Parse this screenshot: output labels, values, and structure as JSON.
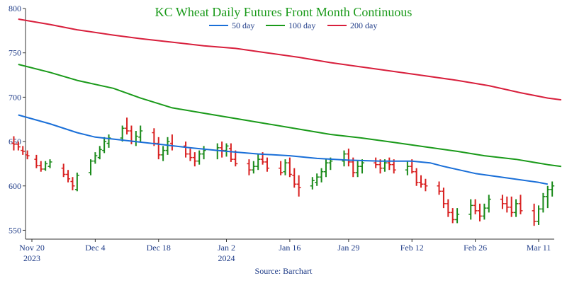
{
  "chart_data": {
    "type": "line",
    "title": "KC Wheat Daily Futures Front Month Continuous",
    "source": "Source: Barchart",
    "colors": {
      "title": "#1a9a1a",
      "ma50": "#1a6fd8",
      "ma100": "#1a9a1a",
      "ma200": "#d81f3c",
      "bar_up": "#1a8a1a",
      "bar_down": "#d81f1f",
      "axis_text": "#1f3c88",
      "axis_line": "#333333"
    },
    "ylim": [
      540,
      800
    ],
    "yticks": [
      550,
      600,
      650,
      700,
      750,
      800
    ],
    "x_day_range": [
      -3,
      110
    ],
    "xticks": [
      {
        "day": 0,
        "label": "Nov 20",
        "sublabel": "2023"
      },
      {
        "day": 14,
        "label": "Dec 4",
        "sublabel": ""
      },
      {
        "day": 28,
        "label": "Dec 18",
        "sublabel": ""
      },
      {
        "day": 43,
        "label": "Jan 2",
        "sublabel": "2024"
      },
      {
        "day": 57,
        "label": "Jan 16",
        "sublabel": ""
      },
      {
        "day": 70,
        "label": "Jan 29",
        "sublabel": ""
      },
      {
        "day": 84,
        "label": "Feb 12",
        "sublabel": ""
      },
      {
        "day": 98,
        "label": "Feb 26",
        "sublabel": ""
      },
      {
        "day": 112,
        "label": "Mar 11",
        "sublabel": ""
      }
    ],
    "legend": [
      {
        "key": "ma50",
        "label": "50 day"
      },
      {
        "key": "ma100",
        "label": "100 day"
      },
      {
        "key": "ma200",
        "label": "200 day"
      }
    ],
    "series": [
      {
        "key": "ma50",
        "name": "50 day",
        "points": [
          [
            -3,
            680
          ],
          [
            4,
            670
          ],
          [
            10,
            660
          ],
          [
            14,
            655
          ],
          [
            21,
            651
          ],
          [
            28,
            647
          ],
          [
            35,
            643
          ],
          [
            43,
            639
          ],
          [
            50,
            636
          ],
          [
            57,
            634
          ],
          [
            63,
            631
          ],
          [
            70,
            629
          ],
          [
            77,
            628
          ],
          [
            84,
            628
          ],
          [
            88,
            626
          ],
          [
            91,
            622
          ],
          [
            98,
            614
          ],
          [
            105,
            609
          ],
          [
            112,
            604
          ],
          [
            114,
            602
          ]
        ]
      },
      {
        "key": "ma100",
        "name": "100 day",
        "points": [
          [
            -3,
            737
          ],
          [
            4,
            728
          ],
          [
            10,
            719
          ],
          [
            18,
            710
          ],
          [
            24,
            699
          ],
          [
            31,
            688
          ],
          [
            38,
            682
          ],
          [
            45,
            676
          ],
          [
            52,
            670
          ],
          [
            59,
            664
          ],
          [
            66,
            658
          ],
          [
            73,
            654
          ],
          [
            80,
            649
          ],
          [
            87,
            644
          ],
          [
            94,
            639
          ],
          [
            100,
            634
          ],
          [
            107,
            630
          ],
          [
            114,
            624
          ],
          [
            117,
            622
          ]
        ]
      },
      {
        "key": "ma200",
        "name": "200 day",
        "points": [
          [
            -3,
            788
          ],
          [
            4,
            782
          ],
          [
            10,
            776
          ],
          [
            18,
            770
          ],
          [
            24,
            766
          ],
          [
            31,
            762
          ],
          [
            38,
            758
          ],
          [
            45,
            755
          ],
          [
            52,
            750
          ],
          [
            59,
            745
          ],
          [
            66,
            739
          ],
          [
            73,
            734
          ],
          [
            80,
            729
          ],
          [
            87,
            724
          ],
          [
            94,
            719
          ],
          [
            101,
            713
          ],
          [
            108,
            705
          ],
          [
            114,
            699
          ],
          [
            117,
            697
          ]
        ]
      }
    ],
    "ohlc": [
      [
        -4,
        648,
        656,
        640,
        647
      ],
      [
        -3,
        647,
        650,
        640,
        644
      ],
      [
        -2,
        640,
        645,
        635,
        639
      ],
      [
        -1,
        635,
        640,
        630,
        634
      ],
      [
        1,
        630,
        635,
        620,
        623
      ],
      [
        2,
        623,
        628,
        616,
        619
      ],
      [
        3,
        619,
        628,
        617,
        625
      ],
      [
        4,
        622,
        630,
        620,
        627
      ],
      [
        7,
        620,
        625,
        610,
        613
      ],
      [
        8,
        613,
        618,
        604,
        608
      ],
      [
        9,
        605,
        610,
        595,
        600
      ],
      [
        10,
        596,
        615,
        594,
        612
      ],
      [
        13,
        615,
        630,
        612,
        628
      ],
      [
        14,
        628,
        638,
        625,
        634
      ],
      [
        15,
        632,
        645,
        630,
        641
      ],
      [
        16,
        640,
        655,
        637,
        650
      ],
      [
        17,
        648,
        658,
        643,
        654
      ],
      [
        20,
        654,
        668,
        650,
        665
      ],
      [
        21,
        665,
        677,
        658,
        662
      ],
      [
        22,
        662,
        668,
        647,
        650
      ],
      [
        23,
        650,
        662,
        645,
        656
      ],
      [
        24,
        655,
        668,
        650,
        662
      ],
      [
        27,
        660,
        665,
        645,
        648
      ],
      [
        28,
        648,
        655,
        630,
        635
      ],
      [
        29,
        635,
        645,
        628,
        640
      ],
      [
        30,
        640,
        655,
        635,
        650
      ],
      [
        31,
        648,
        658,
        640,
        645
      ],
      [
        34,
        645,
        650,
        632,
        636
      ],
      [
        35,
        636,
        642,
        628,
        632
      ],
      [
        36,
        632,
        638,
        622,
        628
      ],
      [
        37,
        628,
        640,
        624,
        636
      ],
      [
        38,
        636,
        645,
        630,
        640
      ],
      [
        41,
        640,
        648,
        630,
        643
      ],
      [
        42,
        643,
        650,
        632,
        640
      ],
      [
        43,
        640,
        648,
        633,
        645
      ],
      [
        44,
        642,
        648,
        627,
        630
      ],
      [
        45,
        630,
        640,
        622,
        625
      ],
      [
        48,
        625,
        630,
        612,
        618
      ],
      [
        49,
        618,
        628,
        614,
        622
      ],
      [
        50,
        622,
        636,
        618,
        630
      ],
      [
        51,
        630,
        638,
        624,
        627
      ],
      [
        52,
        627,
        632,
        616,
        620
      ],
      [
        55,
        620,
        628,
        612,
        615
      ],
      [
        56,
        616,
        630,
        612,
        626
      ],
      [
        57,
        626,
        632,
        610,
        613
      ],
      [
        58,
        612,
        620,
        598,
        602
      ],
      [
        59,
        602,
        612,
        588,
        598
      ],
      [
        62,
        600,
        610,
        596,
        606
      ],
      [
        63,
        604,
        614,
        600,
        610
      ],
      [
        64,
        610,
        620,
        604,
        616
      ],
      [
        65,
        616,
        630,
        610,
        626
      ],
      [
        66,
        626,
        632,
        618,
        628
      ],
      [
        69,
        628,
        640,
        622,
        636
      ],
      [
        70,
        636,
        642,
        622,
        627
      ],
      [
        71,
        627,
        632,
        610,
        615
      ],
      [
        72,
        615,
        628,
        610,
        622
      ],
      [
        73,
        622,
        630,
        614,
        626
      ],
      [
        76,
        626,
        632,
        620,
        624
      ],
      [
        77,
        624,
        630,
        614,
        620
      ],
      [
        78,
        620,
        630,
        616,
        626
      ],
      [
        79,
        626,
        632,
        618,
        624
      ],
      [
        80,
        624,
        630,
        614,
        618
      ],
      [
        83,
        618,
        628,
        612,
        622
      ],
      [
        84,
        622,
        630,
        614,
        616
      ],
      [
        85,
        616,
        620,
        600,
        604
      ],
      [
        86,
        604,
        612,
        598,
        602
      ],
      [
        87,
        602,
        608,
        594,
        600
      ],
      [
        90,
        600,
        605,
        590,
        594
      ],
      [
        91,
        594,
        598,
        575,
        580
      ],
      [
        92,
        580,
        585,
        565,
        570
      ],
      [
        93,
        570,
        575,
        558,
        562
      ],
      [
        94,
        562,
        575,
        558,
        568
      ],
      [
        97,
        568,
        585,
        562,
        578
      ],
      [
        98,
        578,
        585,
        568,
        572
      ],
      [
        99,
        572,
        580,
        560,
        566
      ],
      [
        100,
        566,
        580,
        562,
        575
      ],
      [
        101,
        575,
        590,
        570,
        585
      ],
      [
        104,
        585,
        590,
        574,
        580
      ],
      [
        105,
        580,
        588,
        570,
        576
      ],
      [
        106,
        576,
        588,
        565,
        570
      ],
      [
        107,
        570,
        585,
        565,
        580
      ],
      [
        108,
        580,
        590,
        568,
        572
      ],
      [
        111,
        572,
        580,
        555,
        560
      ],
      [
        112,
        560,
        578,
        556,
        574
      ],
      [
        113,
        574,
        592,
        570,
        588
      ],
      [
        114,
        588,
        600,
        575,
        596
      ],
      [
        115,
        596,
        605,
        588,
        600
      ]
    ]
  }
}
